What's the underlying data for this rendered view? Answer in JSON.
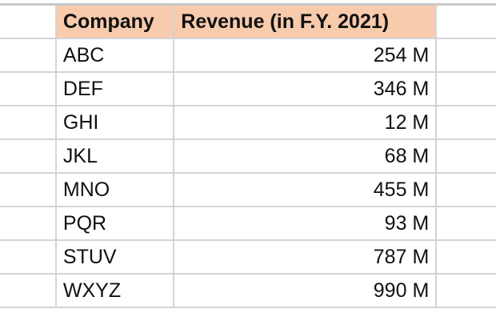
{
  "headers": {
    "company": "Company",
    "revenue": "Revenue (in F.Y. 2021)"
  },
  "header_fill": "#f8cbad",
  "rows": [
    {
      "company": "ABC",
      "revenue": "254 M"
    },
    {
      "company": "DEF",
      "revenue": "346 M"
    },
    {
      "company": "GHI",
      "revenue": "12 M"
    },
    {
      "company": "JKL",
      "revenue": "68 M"
    },
    {
      "company": "MNO",
      "revenue": "455 M"
    },
    {
      "company": "PQR",
      "revenue": "93 M"
    },
    {
      "company": "STUV",
      "revenue": "787 M"
    },
    {
      "company": "WXYZ",
      "revenue": "990 M"
    }
  ]
}
